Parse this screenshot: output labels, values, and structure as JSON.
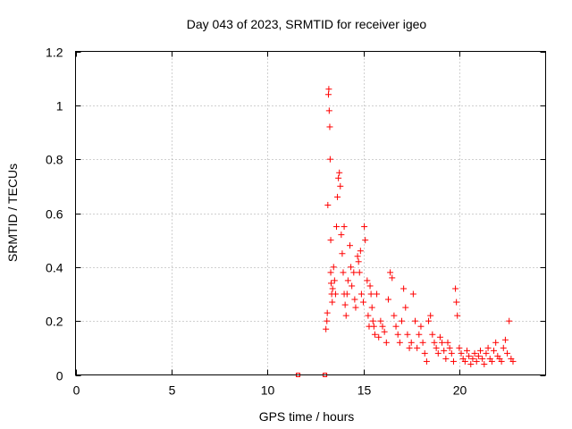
{
  "chart_data": {
    "type": "scatter",
    "title": "Day 043 of 2023, SRMTID for receiver igeo",
    "xlabel": "GPS time / hours",
    "ylabel": "SRMTID / TECUs",
    "xlim": [
      0,
      24.5
    ],
    "ylim": [
      0,
      1.2
    ],
    "xticks": [
      0,
      5,
      10,
      15,
      20
    ],
    "xtick_labels": [
      "0",
      "5",
      "10",
      "15",
      "20"
    ],
    "yticks": [
      0,
      0.2,
      0.4,
      0.6,
      0.8,
      1.0,
      1.2
    ],
    "ytick_labels": [
      "0",
      "0.2",
      "0.4",
      "0.6",
      "0.8",
      "1",
      "1.2"
    ],
    "grid": true,
    "marker": "plus",
    "color": "#ff0000",
    "series": [
      {
        "name": "SRMTID",
        "x": [
          11.6,
          13.0,
          13.05,
          13.1,
          13.12,
          13.15,
          13.18,
          13.2,
          13.22,
          13.25,
          13.27,
          13.3,
          13.3,
          13.32,
          13.35,
          13.38,
          13.4,
          13.45,
          13.5,
          13.55,
          13.6,
          13.65,
          13.7,
          13.75,
          13.8,
          13.85,
          13.9,
          13.95,
          14.0,
          14.0,
          14.05,
          14.1,
          14.15,
          14.2,
          14.3,
          14.35,
          14.4,
          14.5,
          14.55,
          14.6,
          14.7,
          14.75,
          14.8,
          14.85,
          14.9,
          15.0,
          15.05,
          15.1,
          15.2,
          15.25,
          15.3,
          15.35,
          15.4,
          15.45,
          15.5,
          15.55,
          15.6,
          15.7,
          15.8,
          15.9,
          16.0,
          16.1,
          16.2,
          16.3,
          16.4,
          16.5,
          16.6,
          16.7,
          16.8,
          16.9,
          17.0,
          17.1,
          17.2,
          17.3,
          17.4,
          17.5,
          17.6,
          17.7,
          17.8,
          17.9,
          18.0,
          18.1,
          18.2,
          18.3,
          18.4,
          18.5,
          18.6,
          18.7,
          18.8,
          18.9,
          19.0,
          19.1,
          19.2,
          19.3,
          19.4,
          19.5,
          19.6,
          19.7,
          19.8,
          19.85,
          19.9,
          20.0,
          20.1,
          20.2,
          20.3,
          20.4,
          20.5,
          20.6,
          20.7,
          20.8,
          20.9,
          21.0,
          21.1,
          21.2,
          21.3,
          21.4,
          21.5,
          21.6,
          21.7,
          21.8,
          21.9,
          22.0,
          22.1,
          22.2,
          22.3,
          22.4,
          22.5,
          22.6,
          22.7,
          22.8
        ],
        "y": [
          0.0,
          0.0,
          0.17,
          0.2,
          0.23,
          0.63,
          1.04,
          1.06,
          0.98,
          0.92,
          0.8,
          0.5,
          0.38,
          0.34,
          0.3,
          0.27,
          0.32,
          0.4,
          0.35,
          0.3,
          0.55,
          0.66,
          0.73,
          0.75,
          0.7,
          0.52,
          0.45,
          0.38,
          0.55,
          0.3,
          0.26,
          0.22,
          0.3,
          0.35,
          0.48,
          0.4,
          0.33,
          0.38,
          0.28,
          0.25,
          0.44,
          0.42,
          0.38,
          0.46,
          0.3,
          0.27,
          0.55,
          0.5,
          0.35,
          0.22,
          0.18,
          0.33,
          0.3,
          0.25,
          0.2,
          0.18,
          0.15,
          0.3,
          0.14,
          0.2,
          0.18,
          0.16,
          0.12,
          0.28,
          0.38,
          0.36,
          0.22,
          0.18,
          0.15,
          0.12,
          0.2,
          0.32,
          0.25,
          0.15,
          0.1,
          0.12,
          0.3,
          0.2,
          0.1,
          0.15,
          0.18,
          0.12,
          0.08,
          0.05,
          0.2,
          0.22,
          0.15,
          0.12,
          0.1,
          0.08,
          0.14,
          0.12,
          0.09,
          0.06,
          0.12,
          0.1,
          0.08,
          0.05,
          0.32,
          0.27,
          0.22,
          0.1,
          0.08,
          0.06,
          0.05,
          0.09,
          0.07,
          0.04,
          0.06,
          0.08,
          0.05,
          0.07,
          0.09,
          0.06,
          0.04,
          0.08,
          0.1,
          0.06,
          0.05,
          0.09,
          0.12,
          0.07,
          0.06,
          0.05,
          0.1,
          0.13,
          0.08,
          0.2,
          0.06,
          0.05
        ]
      }
    ]
  }
}
